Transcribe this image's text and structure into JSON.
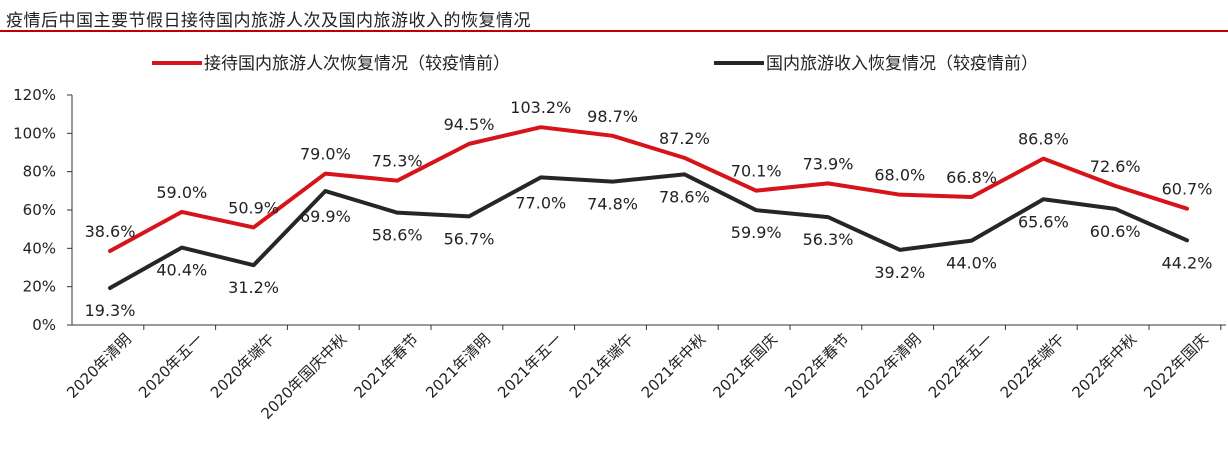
{
  "title": "疫情后中国主要节假日接待国内旅游人次及国内旅游收入的恢复情况",
  "colors": {
    "series1": "#d7141a",
    "series2": "#262626",
    "rule": "#c00000"
  },
  "chart_data": {
    "type": "line",
    "categories": [
      "2020年清明",
      "2020年五一",
      "2020年端午",
      "2020年国庆中秋",
      "2021年春节",
      "2021年清明",
      "2021年五一",
      "2021年端午",
      "2021年中秋",
      "2021年国庆",
      "2022年春节",
      "2022年清明",
      "2022年五一",
      "2022年端午",
      "2022年中秋",
      "2022年国庆"
    ],
    "series": [
      {
        "name": "接待国内旅游人次恢复情况（较疫情前）",
        "values": [
          38.6,
          59.0,
          50.9,
          79.0,
          75.3,
          94.5,
          103.2,
          98.7,
          87.2,
          70.1,
          73.9,
          68.0,
          66.8,
          86.8,
          72.6,
          60.7
        ],
        "labels": [
          "38.6%",
          "59.0%",
          "50.9%",
          "79.0%",
          "75.3%",
          "94.5%",
          "103.2%",
          "98.7%",
          "87.2%",
          "70.1%",
          "73.9%",
          "68.0%",
          "66.8%",
          "86.8%",
          "72.6%",
          "60.7%"
        ]
      },
      {
        "name": "国内旅游收入恢复情况（较疫情前）",
        "values": [
          19.3,
          40.4,
          31.2,
          69.9,
          58.6,
          56.7,
          77.0,
          74.8,
          78.6,
          59.9,
          56.3,
          39.2,
          44.0,
          65.6,
          60.6,
          44.2
        ],
        "labels": [
          "19.3%",
          "40.4%",
          "31.2%",
          "69.9%",
          "58.6%",
          "56.7%",
          "77.0%",
          "74.8%",
          "78.6%",
          "59.9%",
          "56.3%",
          "39.2%",
          "44.0%",
          "65.6%",
          "60.6%",
          "44.2%"
        ]
      }
    ],
    "yticks": [
      "0%",
      "20%",
      "40%",
      "60%",
      "80%",
      "100%",
      "120%"
    ],
    "ylim": [
      0,
      120
    ],
    "grid": false,
    "legend": "top"
  }
}
